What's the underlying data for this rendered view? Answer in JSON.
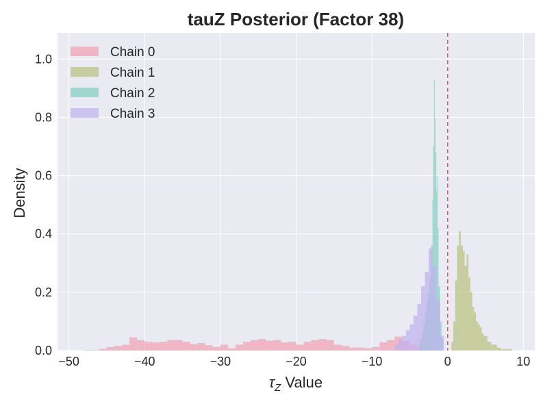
{
  "chart_data": {
    "type": "histogram",
    "title": "tauZ Posterior (Factor 38)",
    "xlabel_symbol": "τ",
    "xlabel_sub": "Z",
    "xlabel_rest": " Value",
    "ylabel": "Density",
    "xlim": [
      -51.5,
      11.5
    ],
    "ylim": [
      0.0,
      1.09
    ],
    "xticks": [
      -50,
      -40,
      -30,
      -20,
      -10,
      0,
      10
    ],
    "xtick_labels": [
      "−50",
      "−40",
      "−30",
      "−20",
      "−10",
      "0",
      "10"
    ],
    "yticks": [
      0.0,
      0.2,
      0.4,
      0.6,
      0.8,
      1.0
    ],
    "ytick_labels": [
      "0.0",
      "0.2",
      "0.4",
      "0.6",
      "0.8",
      "1.0"
    ],
    "grid": true,
    "legend_position": "upper-left",
    "reference_line": {
      "x": 0.0,
      "color": "#e8585b",
      "style": "dashed"
    },
    "series": [
      {
        "name": "Chain 0",
        "color": "#f2a0b3",
        "bins": [
          [
            -48.0,
            -46.0,
            0.002
          ],
          [
            -46.0,
            -45.0,
            0.006
          ],
          [
            -45.0,
            -44.0,
            0.012
          ],
          [
            -44.0,
            -43.0,
            0.016
          ],
          [
            -43.0,
            -42.0,
            0.02
          ],
          [
            -42.0,
            -41.0,
            0.045
          ],
          [
            -41.0,
            -40.0,
            0.036
          ],
          [
            -40.0,
            -39.0,
            0.03
          ],
          [
            -39.0,
            -38.0,
            0.028
          ],
          [
            -38.0,
            -37.0,
            0.03
          ],
          [
            -37.0,
            -36.0,
            0.036
          ],
          [
            -36.0,
            -35.0,
            0.036
          ],
          [
            -35.0,
            -34.0,
            0.03
          ],
          [
            -34.0,
            -33.0,
            0.022
          ],
          [
            -33.0,
            -32.0,
            0.026
          ],
          [
            -32.0,
            -31.0,
            0.018
          ],
          [
            -31.0,
            -30.0,
            0.012
          ],
          [
            -30.0,
            -29.0,
            0.02
          ],
          [
            -29.0,
            -28.0,
            0.008
          ],
          [
            -28.0,
            -27.0,
            0.02
          ],
          [
            -27.0,
            -26.0,
            0.03
          ],
          [
            -26.0,
            -25.0,
            0.036
          ],
          [
            -25.0,
            -24.0,
            0.04
          ],
          [
            -24.0,
            -23.0,
            0.034
          ],
          [
            -23.0,
            -22.0,
            0.036
          ],
          [
            -22.0,
            -21.0,
            0.028
          ],
          [
            -21.0,
            -20.0,
            0.03
          ],
          [
            -20.0,
            -19.0,
            0.02
          ],
          [
            -19.0,
            -18.0,
            0.03
          ],
          [
            -18.0,
            -17.0,
            0.036
          ],
          [
            -17.0,
            -16.0,
            0.04
          ],
          [
            -16.0,
            -15.0,
            0.036
          ],
          [
            -15.0,
            -14.0,
            0.02
          ],
          [
            -14.0,
            -13.0,
            0.016
          ],
          [
            -13.0,
            -12.0,
            0.01
          ],
          [
            -12.0,
            -11.0,
            0.01
          ],
          [
            -11.0,
            -10.0,
            0.008
          ],
          [
            -10.0,
            -9.0,
            0.012
          ],
          [
            -9.0,
            -8.0,
            0.028
          ],
          [
            -8.0,
            -7.0,
            0.036
          ],
          [
            -7.0,
            -6.0,
            0.048
          ],
          [
            -6.0,
            -5.0,
            0.032
          ],
          [
            -5.0,
            -4.0,
            0.02
          ],
          [
            -4.0,
            -3.0,
            0.01
          ]
        ]
      },
      {
        "name": "Chain 1",
        "color": "#b8c07a",
        "bins": [
          [
            0.5,
            0.75,
            0.03
          ],
          [
            0.75,
            1.0,
            0.1
          ],
          [
            1.0,
            1.25,
            0.24
          ],
          [
            1.25,
            1.5,
            0.36
          ],
          [
            1.5,
            1.75,
            0.41
          ],
          [
            1.75,
            2.0,
            0.36
          ],
          [
            2.0,
            2.25,
            0.34
          ],
          [
            2.25,
            2.5,
            0.29
          ],
          [
            2.5,
            2.75,
            0.33
          ],
          [
            2.75,
            3.0,
            0.25
          ],
          [
            3.0,
            3.25,
            0.2
          ],
          [
            3.25,
            3.5,
            0.15
          ],
          [
            3.5,
            3.75,
            0.13
          ],
          [
            3.75,
            4.0,
            0.1
          ],
          [
            4.0,
            4.25,
            0.09
          ],
          [
            4.25,
            4.5,
            0.08
          ],
          [
            4.5,
            4.75,
            0.06
          ],
          [
            4.75,
            5.0,
            0.05
          ],
          [
            5.0,
            5.25,
            0.05
          ],
          [
            5.25,
            5.5,
            0.03
          ],
          [
            5.5,
            5.75,
            0.03
          ],
          [
            5.75,
            6.0,
            0.02
          ],
          [
            6.0,
            6.5,
            0.02
          ],
          [
            6.5,
            7.0,
            0.01
          ],
          [
            7.0,
            8.5,
            0.005
          ]
        ]
      },
      {
        "name": "Chain 2",
        "color": "#7fcdbe",
        "bins": [
          [
            -3.8,
            -3.6,
            0.02
          ],
          [
            -3.6,
            -3.4,
            0.04
          ],
          [
            -3.4,
            -3.2,
            0.06
          ],
          [
            -3.2,
            -3.0,
            0.09
          ],
          [
            -3.0,
            -2.8,
            0.13
          ],
          [
            -2.8,
            -2.6,
            0.17
          ],
          [
            -2.6,
            -2.4,
            0.2
          ],
          [
            -2.4,
            -2.2,
            0.25
          ],
          [
            -2.2,
            -2.0,
            0.36
          ],
          [
            -2.0,
            -1.9,
            0.52
          ],
          [
            -1.9,
            -1.8,
            0.7
          ],
          [
            -1.8,
            -1.7,
            0.93
          ],
          [
            -1.7,
            -1.6,
            0.8
          ],
          [
            -1.6,
            -1.5,
            0.68
          ],
          [
            -1.5,
            -1.4,
            0.55
          ],
          [
            -1.4,
            -1.3,
            0.6
          ],
          [
            -1.3,
            -1.2,
            0.42
          ],
          [
            -1.2,
            -1.0,
            0.22
          ],
          [
            -1.0,
            -0.8,
            0.1
          ],
          [
            -0.8,
            -0.6,
            0.04
          ]
        ]
      },
      {
        "name": "Chain 3",
        "color": "#bfb0ef",
        "bins": [
          [
            -7.0,
            -6.5,
            0.02
          ],
          [
            -6.5,
            -6.0,
            0.04
          ],
          [
            -6.0,
            -5.5,
            0.05
          ],
          [
            -5.5,
            -5.0,
            0.07
          ],
          [
            -5.0,
            -4.5,
            0.09
          ],
          [
            -4.5,
            -4.0,
            0.12
          ],
          [
            -4.0,
            -3.5,
            0.16
          ],
          [
            -3.5,
            -3.0,
            0.22
          ],
          [
            -3.0,
            -2.5,
            0.27
          ],
          [
            -2.5,
            -2.0,
            0.35
          ],
          [
            -2.0,
            -1.5,
            0.29
          ],
          [
            -1.5,
            -1.0,
            0.17
          ],
          [
            -1.0,
            -0.5,
            0.05
          ]
        ]
      }
    ]
  }
}
